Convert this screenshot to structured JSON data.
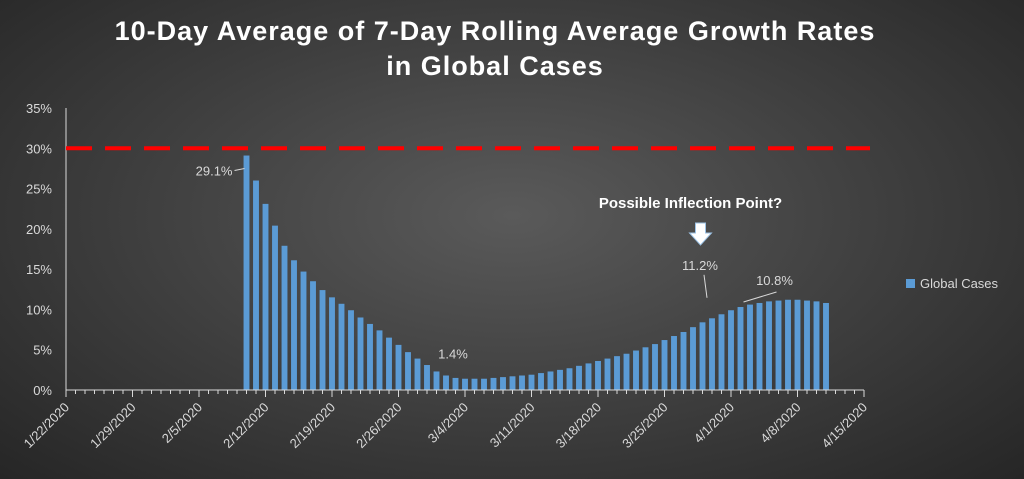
{
  "chart_data": {
    "type": "bar",
    "title_line1": "10-Day Average of 7-Day Rolling Average Growth Rates",
    "title_line2": "in Global Cases",
    "xlabel": "",
    "ylabel": "",
    "ylim": [
      0,
      0.35
    ],
    "y_ticks": [
      "0%",
      "5%",
      "10%",
      "15%",
      "20%",
      "25%",
      "30%",
      "35%"
    ],
    "x_ticks": [
      "1/22/2020",
      "1/29/2020",
      "2/5/2020",
      "2/12/2020",
      "2/19/2020",
      "2/26/2020",
      "3/4/2020",
      "3/11/2020",
      "3/18/2020",
      "3/25/2020",
      "4/1/2020",
      "4/8/2020",
      "4/15/2020"
    ],
    "x_range": [
      "1/22/2020",
      "4/15/2020"
    ],
    "grid": false,
    "legend_position": "right",
    "series": [
      {
        "name": "Global Cases",
        "color": "#5b9bd5",
        "start_date": "2/10/2020",
        "values": [
          0.291,
          0.26,
          0.231,
          0.204,
          0.179,
          0.161,
          0.147,
          0.135,
          0.124,
          0.115,
          0.107,
          0.099,
          0.09,
          0.082,
          0.074,
          0.065,
          0.056,
          0.047,
          0.039,
          0.031,
          0.023,
          0.018,
          0.015,
          0.014,
          0.014,
          0.014,
          0.015,
          0.016,
          0.017,
          0.018,
          0.019,
          0.021,
          0.023,
          0.025,
          0.027,
          0.03,
          0.033,
          0.036,
          0.039,
          0.042,
          0.045,
          0.049,
          0.053,
          0.057,
          0.062,
          0.067,
          0.072,
          0.078,
          0.084,
          0.089,
          0.094,
          0.099,
          0.103,
          0.106,
          0.108,
          0.11,
          0.111,
          0.112,
          0.112,
          0.111,
          0.11,
          0.108
        ]
      }
    ],
    "reference_line": {
      "value": 0.3,
      "color": "#ff0000",
      "style": "dashed"
    },
    "data_labels": [
      {
        "text": "29.1%",
        "date": "2/10/2020",
        "value": 0.291
      },
      {
        "text": "1.4%",
        "date": "3/4/2020",
        "value": 0.014
      },
      {
        "text": "11.2%",
        "date": "3/30/2020",
        "value": 0.112
      },
      {
        "text": "10.8%",
        "date": "4/2/2020",
        "value": 0.108
      }
    ],
    "annotation": {
      "text": "Possible Inflection Point?",
      "date": "3/29/2020"
    }
  },
  "colors": {
    "axis": "#d9d9d9",
    "text": "#d9d9d9",
    "bar": "#5b9bd5"
  }
}
